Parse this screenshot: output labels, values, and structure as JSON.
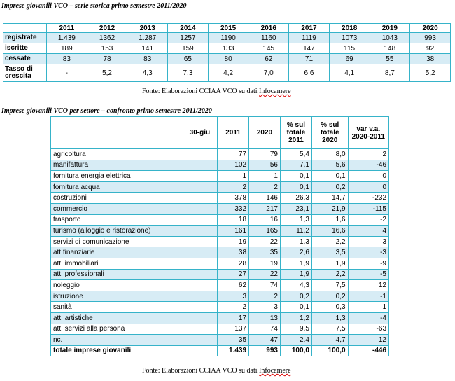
{
  "title1": "Imprese giovanili VCO  – serie storica primo semestre 2011/2020",
  "table1": {
    "years": [
      "2011",
      "2012",
      "2013",
      "2014",
      "2015",
      "2016",
      "2017",
      "2018",
      "2019",
      "2020"
    ],
    "rows": [
      {
        "label": "registrate",
        "values": [
          "1.439",
          "1362",
          "1.287",
          "1257",
          "1190",
          "1160",
          "1119",
          "1073",
          "1043",
          "993"
        ]
      },
      {
        "label": "iscritte",
        "values": [
          "189",
          "153",
          "141",
          "159",
          "133",
          "145",
          "147",
          "115",
          "148",
          "92"
        ]
      },
      {
        "label": "cessate",
        "values": [
          "83",
          "78",
          "83",
          "65",
          "80",
          "62",
          "71",
          "69",
          "55",
          "38"
        ]
      },
      {
        "label": "Tasso  di crescita",
        "values": [
          "-",
          "5,2",
          "4,3",
          "7,3",
          "4,2",
          "7,0",
          "6,6",
          "4,1",
          "8,7",
          "5,2"
        ]
      }
    ]
  },
  "source1": {
    "prefix": "Fonte: Elaborazioni CCIAA VCO su dati ",
    "link": "Infocamere"
  },
  "title2": "Imprese giovanili VCO per settore – confronto primo semestre 2011/2020",
  "table2": {
    "headers": [
      "30-giu",
      "2011",
      "2020",
      "% sul totale 2011",
      "% sul totale 2020",
      "var v.a. 2020-2011"
    ],
    "rows": [
      {
        "label": "agricoltura",
        "values": [
          "77",
          "79",
          "5,4",
          "8,0",
          "2"
        ]
      },
      {
        "label": "manifattura",
        "values": [
          "102",
          "56",
          "7,1",
          "5,6",
          "-46"
        ]
      },
      {
        "label": "fornitura energia elettrica",
        "values": [
          "1",
          "1",
          "0,1",
          "0,1",
          "0"
        ]
      },
      {
        "label": "fornitura acqua",
        "values": [
          "2",
          "2",
          "0,1",
          "0,2",
          "0"
        ]
      },
      {
        "label": "costruzioni",
        "values": [
          "378",
          "146",
          "26,3",
          "14,7",
          "-232"
        ]
      },
      {
        "label": "commercio",
        "values": [
          "332",
          "217",
          "23,1",
          "21,9",
          "-115"
        ]
      },
      {
        "label": "trasporto",
        "values": [
          "18",
          "16",
          "1,3",
          "1,6",
          "-2"
        ]
      },
      {
        "label": "turismo (alloggio e ristorazione)",
        "values": [
          "161",
          "165",
          "11,2",
          "16,6",
          "4"
        ]
      },
      {
        "label": "servizi di comunicazione",
        "values": [
          "19",
          "22",
          "1,3",
          "2,2",
          "3"
        ]
      },
      {
        "label": "att.finanziarie",
        "values": [
          "38",
          "35",
          "2,6",
          "3,5",
          "-3"
        ]
      },
      {
        "label": "att. immobiliari",
        "values": [
          "28",
          "19",
          "1,9",
          "1,9",
          "-9"
        ]
      },
      {
        "label": "att. professionali",
        "values": [
          "27",
          "22",
          "1,9",
          "2,2",
          "-5"
        ]
      },
      {
        "label": "noleggio",
        "values": [
          "62",
          "74",
          "4,3",
          "7,5",
          "12"
        ]
      },
      {
        "label": "istruzione",
        "values": [
          "3",
          "2",
          "0,2",
          "0,2",
          "-1"
        ]
      },
      {
        "label": "sanità",
        "values": [
          "2",
          "3",
          "0,1",
          "0,3",
          "1"
        ]
      },
      {
        "label": "att. artistiche",
        "values": [
          "17",
          "13",
          "1,2",
          "1,3",
          "-4"
        ]
      },
      {
        "label": "att. servizi alla persona",
        "values": [
          "137",
          "74",
          "9,5",
          "7,5",
          "-63"
        ]
      },
      {
        "label": "nc.",
        "values": [
          "35",
          "47",
          "2,4",
          "4,7",
          "12"
        ]
      }
    ],
    "total": {
      "label": "totale imprese giovanili",
      "values": [
        "1.439",
        "993",
        "100,0",
        "100,0",
        "-446"
      ]
    }
  },
  "source2": {
    "prefix": "Fonte: Elaborazioni CCIAA VCO su dati ",
    "link": "Infocamere"
  }
}
